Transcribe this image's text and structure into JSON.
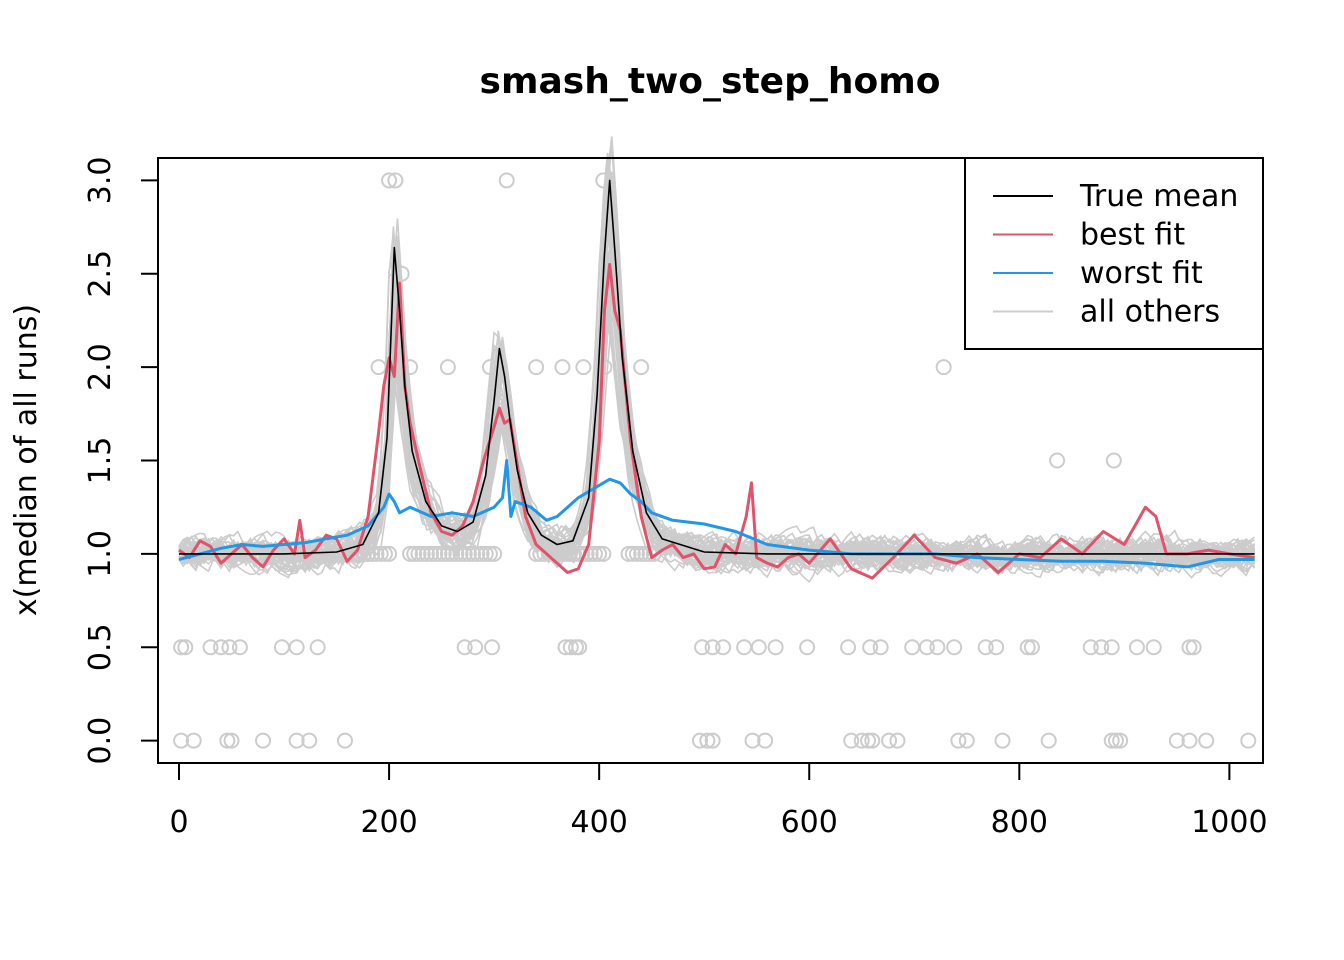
{
  "chart_data": {
    "type": "line",
    "title": "smash_two_step_homo",
    "xlabel": "",
    "ylabel": "x(median of all runs)",
    "xlim": [
      -20,
      1032
    ],
    "ylim": [
      -0.12,
      3.12
    ],
    "x_ticks": [
      "0",
      "200",
      "400",
      "600",
      "800",
      "1000"
    ],
    "y_ticks": [
      "0.0",
      "0.5",
      "1.0",
      "1.5",
      "2.0",
      "2.5",
      "3.0"
    ],
    "legend": {
      "position": "top-right",
      "entries": [
        {
          "label": "True mean",
          "color": "#000000"
        },
        {
          "label": "best fit",
          "color": "#DF536B"
        },
        {
          "label": "worst fit",
          "color": "#2297E6"
        },
        {
          "label": "all others",
          "color": "#CCCCCC"
        }
      ]
    },
    "series": [
      {
        "name": "True mean",
        "color": "#000000",
        "x": [
          0,
          40,
          100,
          150,
          175,
          190,
          198,
          202,
          205,
          210,
          215,
          222,
          235,
          250,
          265,
          280,
          292,
          300,
          305,
          310,
          315,
          322,
          332,
          345,
          360,
          375,
          390,
          398,
          405,
          410,
          415,
          422,
          432,
          445,
          460,
          500,
          560,
          640,
          720,
          800,
          880,
          960,
          1024
        ],
        "values": [
          1.0,
          1.0,
          1.0,
          1.01,
          1.05,
          1.22,
          1.62,
          2.2,
          2.64,
          2.3,
          1.9,
          1.55,
          1.28,
          1.15,
          1.12,
          1.17,
          1.42,
          1.82,
          2.1,
          1.95,
          1.72,
          1.45,
          1.22,
          1.1,
          1.05,
          1.07,
          1.3,
          1.85,
          2.6,
          3.0,
          2.62,
          2.05,
          1.55,
          1.22,
          1.08,
          1.01,
          1.0,
          1.0,
          1.0,
          1.0,
          1.0,
          1.0,
          1.0
        ]
      },
      {
        "name": "best fit",
        "color": "#DF536B",
        "x": [
          0,
          10,
          20,
          30,
          40,
          50,
          60,
          70,
          80,
          90,
          100,
          110,
          115,
          120,
          130,
          140,
          150,
          160,
          170,
          180,
          190,
          195,
          200,
          205,
          210,
          215,
          220,
          230,
          240,
          250,
          260,
          270,
          280,
          290,
          300,
          305,
          310,
          315,
          320,
          330,
          340,
          350,
          360,
          370,
          380,
          390,
          400,
          405,
          410,
          415,
          420,
          425,
          430,
          440,
          450,
          460,
          470,
          480,
          490,
          500,
          510,
          520,
          530,
          540,
          545,
          550,
          560,
          570,
          580,
          590,
          600,
          620,
          640,
          660,
          680,
          700,
          720,
          740,
          760,
          780,
          800,
          820,
          840,
          860,
          880,
          900,
          910,
          920,
          930,
          940,
          960,
          980,
          1000,
          1024
        ],
        "values": [
          1.02,
          0.98,
          1.07,
          1.04,
          0.95,
          1.0,
          1.05,
          0.98,
          0.93,
          1.02,
          1.08,
          1.0,
          1.18,
          0.98,
          1.02,
          1.1,
          1.08,
          0.96,
          1.02,
          1.2,
          1.65,
          1.9,
          2.05,
          1.95,
          2.45,
          1.9,
          1.7,
          1.45,
          1.22,
          1.12,
          1.1,
          1.15,
          1.28,
          1.5,
          1.68,
          1.78,
          1.7,
          1.72,
          1.55,
          1.2,
          1.05,
          1.0,
          0.95,
          0.9,
          0.92,
          1.05,
          1.6,
          2.3,
          2.55,
          2.3,
          2.2,
          1.9,
          1.6,
          1.2,
          0.98,
          1.02,
          1.05,
          0.98,
          1.0,
          0.92,
          0.93,
          1.05,
          1.0,
          1.2,
          1.38,
          0.98,
          0.95,
          0.93,
          0.98,
          1.0,
          0.95,
          1.08,
          0.92,
          0.87,
          0.98,
          1.1,
          0.98,
          0.95,
          1.0,
          0.9,
          1.0,
          0.98,
          1.08,
          1.0,
          1.12,
          1.05,
          1.15,
          1.25,
          1.2,
          1.0,
          1.0,
          1.02,
          1.0,
          0.98
        ]
      },
      {
        "name": "worst fit",
        "color": "#2297E6",
        "x": [
          0,
          20,
          40,
          60,
          80,
          100,
          120,
          140,
          160,
          180,
          195,
          200,
          205,
          210,
          220,
          240,
          260,
          280,
          300,
          308,
          312,
          316,
          320,
          335,
          350,
          360,
          370,
          380,
          395,
          410,
          420,
          430,
          440,
          450,
          470,
          500,
          530,
          560,
          600,
          640,
          680,
          720,
          760,
          800,
          840,
          880,
          920,
          960,
          990,
          1024
        ],
        "values": [
          0.97,
          1.0,
          1.03,
          1.05,
          1.04,
          1.05,
          1.06,
          1.08,
          1.1,
          1.15,
          1.25,
          1.32,
          1.28,
          1.22,
          1.25,
          1.2,
          1.22,
          1.2,
          1.25,
          1.3,
          1.5,
          1.2,
          1.28,
          1.25,
          1.18,
          1.2,
          1.25,
          1.3,
          1.35,
          1.4,
          1.38,
          1.32,
          1.28,
          1.22,
          1.18,
          1.16,
          1.12,
          1.05,
          1.02,
          1.0,
          1.0,
          1.0,
          0.98,
          0.97,
          0.96,
          0.96,
          0.95,
          0.93,
          0.97,
          0.97
        ]
      }
    ],
    "observation_points": {
      "color": "#CCCCCC",
      "note": "observed counts shown as open circles",
      "x": [
        2,
        6,
        30,
        40,
        48,
        58,
        98,
        112,
        132,
        272,
        282,
        298,
        368,
        373,
        378,
        381,
        498,
        508,
        518,
        538,
        552,
        568,
        598,
        637,
        658,
        668,
        698,
        712,
        722,
        738,
        768,
        778,
        808,
        812,
        868,
        878,
        888,
        912,
        928,
        962,
        966,
        2,
        14,
        46,
        50,
        80,
        112,
        124,
        158,
        496,
        503,
        508,
        546,
        558,
        640,
        650,
        656,
        660,
        676,
        684,
        742,
        750,
        784,
        828,
        888,
        892,
        896,
        950,
        962,
        978,
        1018,
        190,
        220,
        256,
        296,
        340,
        365,
        385,
        405,
        440,
        728,
        200,
        206,
        312,
        404,
        212,
        836,
        890
      ],
      "values": [
        0.5,
        0.5,
        0.5,
        0.5,
        0.5,
        0.5,
        0.5,
        0.5,
        0.5,
        0.5,
        0.5,
        0.5,
        0.5,
        0.5,
        0.5,
        0.5,
        0.5,
        0.5,
        0.5,
        0.5,
        0.5,
        0.5,
        0.5,
        0.5,
        0.5,
        0.5,
        0.5,
        0.5,
        0.5,
        0.5,
        0.5,
        0.5,
        0.5,
        0.5,
        0.5,
        0.5,
        0.5,
        0.5,
        0.5,
        0.5,
        0.5,
        0.0,
        0.0,
        0.0,
        0.0,
        0.0,
        0.0,
        0.0,
        0.0,
        0.0,
        0.0,
        0.0,
        0.0,
        0.0,
        0.0,
        0.0,
        0.0,
        0.0,
        0.0,
        0.0,
        0.0,
        0.0,
        0.0,
        0.0,
        0.0,
        0.0,
        0.0,
        0.0,
        0.0,
        0.0,
        0.0,
        2.0,
        2.0,
        2.0,
        2.0,
        2.0,
        2.0,
        2.0,
        2.0,
        2.0,
        2.0,
        3.0,
        3.0,
        3.0,
        3.0,
        2.5,
        1.5,
        1.5
      ]
    }
  }
}
